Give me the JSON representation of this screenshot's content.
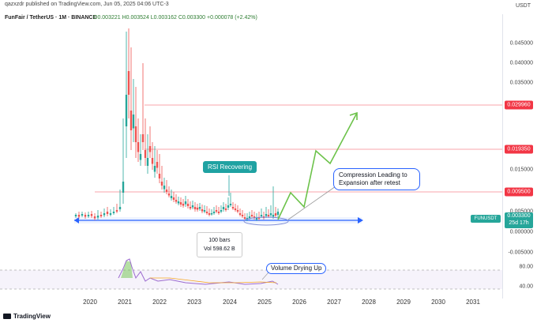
{
  "header": {
    "published": "qazxzdr published on TradingView.com, Jun 05, 2025 04:06 UTC-3",
    "symbol_line": "FunFair / TetherUS · 1M · BINANCE",
    "ohlc": "O0.003221 H0.003524 L0.003162 C0.003300 +0.000078 (+2.42%)"
  },
  "price_axis": {
    "currency": "USDT",
    "ticks": [
      "0.045000",
      "0.040000",
      "0.035000",
      "0.025000",
      "0.015000",
      "0.010000",
      "0.005000",
      "0.000000",
      "-0.005000"
    ],
    "tags": [
      "0.029960",
      "0.019350",
      "0.009500"
    ],
    "symbol_tag": "FUNUSDT",
    "price_tag": "0.003300",
    "countdown": "25d 17h"
  },
  "rsi_axis": {
    "ticks": [
      "80.00",
      "40.00"
    ]
  },
  "time_axis": {
    "labels": [
      "2020",
      "2021",
      "2022",
      "2023",
      "2024",
      "2025",
      "2026",
      "2027",
      "2028",
      "2029",
      "2030",
      "2031"
    ]
  },
  "annotations": {
    "rsi_recovering": "RSI Recovering",
    "compression": "Compression Leading to Expansion after retest",
    "volume_drying": "Volume Drying Up",
    "bars_count": "100 bars",
    "vol": "Vol 598.62 B"
  },
  "footer": {
    "brand": "TradingView"
  },
  "colors": {
    "up": "#26a69a",
    "down": "#ef5350",
    "level": "#f23645",
    "projection": "#6cc24a",
    "box": "#2962ff"
  }
}
